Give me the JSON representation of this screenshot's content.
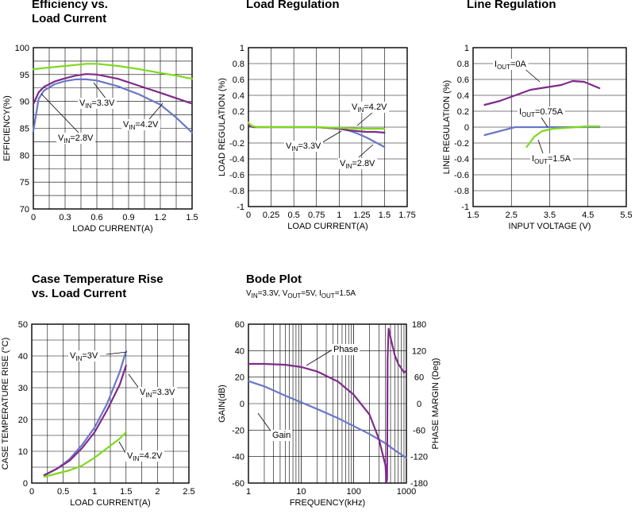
{
  "chart_data": [
    {
      "id": "eff",
      "type": "line",
      "title": [
        "Efficiency vs.",
        "Load Current"
      ],
      "xlabel": "LOAD CURRENT(A)",
      "ylabel": "EFFICIENCY(%)",
      "xlim": [
        0,
        1.5
      ],
      "ylim": [
        70,
        100
      ],
      "xticks": [
        0,
        0.3,
        0.6,
        0.9,
        1.2,
        1.5
      ],
      "xtick_labels": [
        "0",
        "0.3",
        "0.6",
        "0.9",
        "1.2",
        "1.5"
      ],
      "yticks": [
        70,
        75,
        80,
        85,
        90,
        95,
        100
      ],
      "ytick_labels": [
        "70",
        "75",
        "80",
        "85",
        "90",
        "95",
        "100"
      ],
      "grid": "minor-and-major",
      "series": [
        {
          "name": "V_IN=2.8V",
          "color": "#6a77c8",
          "x": [
            0,
            0.05,
            0.1,
            0.2,
            0.3,
            0.4,
            0.5,
            0.6,
            0.8,
            1.0,
            1.2,
            1.35,
            1.5
          ],
          "y": [
            84.5,
            90.5,
            92,
            93.2,
            93.8,
            94.1,
            94.1,
            93.9,
            92.8,
            91.3,
            89.4,
            87,
            84.2
          ]
        },
        {
          "name": "V_IN=3.3V",
          "color": "#7f2a8a",
          "x": [
            0,
            0.05,
            0.1,
            0.2,
            0.3,
            0.4,
            0.5,
            0.6,
            0.8,
            1.0,
            1.2,
            1.35,
            1.5
          ],
          "y": [
            89.5,
            91.7,
            92.7,
            93.7,
            94.3,
            94.8,
            95.1,
            95.0,
            94.2,
            92.9,
            91.6,
            90.6,
            89.6
          ]
        },
        {
          "name": "V_IN=4.2V",
          "color": "#7ed91b",
          "x": [
            0,
            0.05,
            0.1,
            0.2,
            0.3,
            0.4,
            0.5,
            0.6,
            0.8,
            1.0,
            1.2,
            1.35,
            1.5
          ],
          "y": [
            96.0,
            96.1,
            96.2,
            96.4,
            96.6,
            96.8,
            97.0,
            97.0,
            96.6,
            96.0,
            95.3,
            94.8,
            94.2
          ]
        }
      ],
      "annotations": [
        {
          "prefix": "V",
          "sub": "IN",
          "suffix": "=3.3V"
        },
        {
          "prefix": "V",
          "sub": "IN",
          "suffix": "=4.2V"
        },
        {
          "prefix": "V",
          "sub": "IN",
          "suffix": "=2.8V"
        }
      ]
    },
    {
      "id": "load",
      "type": "line",
      "title": [
        "Load Regulation"
      ],
      "xlabel": "LOAD CURRENT(A)",
      "ylabel": "LOAD REGULATION (%)",
      "xlim": [
        0,
        1.75
      ],
      "ylim": [
        -1,
        1
      ],
      "xticks": [
        0,
        0.25,
        0.5,
        0.75,
        1,
        1.25,
        1.5,
        1.75
      ],
      "xtick_labels": [
        "0",
        "0.25",
        "0.5",
        "0.75",
        "1",
        "1.25",
        "1.5",
        "1.75"
      ],
      "yticks": [
        -1,
        -0.8,
        -0.6,
        -0.4,
        -0.2,
        0,
        0.2,
        0.4,
        0.6,
        0.8,
        1
      ],
      "ytick_labels": [
        "-1",
        "-0.8",
        "-0.6",
        "-0.4",
        "-0.2",
        "0",
        "0.2",
        "0.4",
        "0.6",
        "0.8",
        "1"
      ],
      "grid": "major",
      "series": [
        {
          "name": "V_IN=2.8V",
          "color": "#6a77c8",
          "x": [
            0,
            0.02,
            0.05,
            0.1,
            0.3,
            0.5,
            0.75,
            1.0,
            1.1,
            1.2,
            1.3,
            1.4,
            1.5
          ],
          "y": [
            0.05,
            0.02,
            0.0,
            0.0,
            0.0,
            0.0,
            0.0,
            -0.02,
            -0.04,
            -0.08,
            -0.13,
            -0.19,
            -0.25
          ]
        },
        {
          "name": "V_IN=3.3V",
          "color": "#7f2a8a",
          "x": [
            0,
            0.02,
            0.05,
            0.1,
            0.3,
            0.5,
            0.75,
            1.0,
            1.1,
            1.2,
            1.3,
            1.4,
            1.5
          ],
          "y": [
            0.03,
            0.01,
            0.0,
            0.0,
            0.0,
            0.0,
            0.0,
            -0.02,
            -0.04,
            -0.05,
            -0.06,
            -0.06,
            -0.07
          ]
        },
        {
          "name": "V_IN=4.2V",
          "color": "#7ed91b",
          "x": [
            0,
            0.02,
            0.05,
            0.1,
            0.3,
            0.5,
            0.75,
            1.0,
            1.25,
            1.5
          ],
          "y": [
            0.06,
            0.03,
            0.01,
            0.0,
            0.0,
            0.0,
            0.0,
            -0.01,
            -0.02,
            -0.02
          ]
        }
      ],
      "annotations": [
        {
          "prefix": "V",
          "sub": "IN",
          "suffix": "=4.2V"
        },
        {
          "prefix": "V",
          "sub": "IN",
          "suffix": "=3.3V"
        },
        {
          "prefix": "V",
          "sub": "IN",
          "suffix": "=2.8V"
        }
      ]
    },
    {
      "id": "line",
      "type": "line",
      "title": [
        "Line Regulation"
      ],
      "xlabel": "INPUT VOLTAGE (V)",
      "ylabel": "LINE REGULATION (%)",
      "xlim": [
        1.5,
        5.5
      ],
      "ylim": [
        -1,
        1
      ],
      "xticks": [
        1.5,
        2.5,
        3.5,
        4.5,
        5.5
      ],
      "xtick_labels": [
        "1.5",
        "2.5",
        "3.5",
        "4.5",
        "5.5"
      ],
      "yticks": [
        -1,
        -0.8,
        -0.6,
        -0.4,
        -0.2,
        0,
        0.2,
        0.4,
        0.6,
        0.8,
        1
      ],
      "ytick_labels": [
        "-1",
        "-0.8",
        "-0.6",
        "-0.4",
        "-0.2",
        "0",
        "0.2",
        "0.4",
        "0.6",
        "0.8",
        "1"
      ],
      "grid": "major",
      "series": [
        {
          "name": "I_OUT=0A",
          "color": "#7f2a8a",
          "x": [
            1.8,
            2.2,
            2.6,
            3.0,
            3.4,
            3.8,
            4.1,
            4.4,
            4.6,
            4.8
          ],
          "y": [
            0.28,
            0.33,
            0.4,
            0.47,
            0.5,
            0.53,
            0.58,
            0.57,
            0.53,
            0.49
          ]
        },
        {
          "name": "I_OUT=0.75A",
          "color": "#6a77c8",
          "x": [
            1.8,
            2.2,
            2.6,
            3.0,
            3.5,
            4.0,
            4.4,
            4.8
          ],
          "y": [
            -0.1,
            -0.05,
            0.0,
            0.0,
            0.0,
            0.0,
            0.0,
            0.0
          ]
        },
        {
          "name": "I_OUT=1.5A",
          "color": "#7ed91b",
          "x": [
            2.9,
            3.1,
            3.3,
            3.6,
            3.9,
            4.2,
            4.5,
            4.8
          ],
          "y": [
            -0.25,
            -0.12,
            -0.05,
            -0.02,
            -0.01,
            0.0,
            0.01,
            0.01
          ]
        }
      ],
      "annotations": [
        {
          "prefix": "I",
          "sub": "OUT",
          "suffix": "=0A"
        },
        {
          "prefix": "I",
          "sub": "OUT",
          "suffix": "=0.75A"
        },
        {
          "prefix": "I",
          "sub": "OUT",
          "suffix": "=1.5A"
        }
      ]
    },
    {
      "id": "temp",
      "type": "line",
      "title": [
        "Case Temperature Rise",
        "vs. Load Current"
      ],
      "xlabel": "LOAD CURRENT(A)",
      "ylabel": "CASE TEMPERATURE RISE (°C)",
      "xlim": [
        0,
        2.5
      ],
      "ylim": [
        0,
        50
      ],
      "xticks": [
        0,
        0.5,
        1,
        1.5,
        2,
        2.5
      ],
      "xtick_labels": [
        "0",
        "0.5",
        "1",
        "1.5",
        "2",
        "2.5"
      ],
      "yticks": [
        0,
        10,
        20,
        30,
        40,
        50
      ],
      "ytick_labels": [
        "0",
        "10",
        "20",
        "30",
        "40",
        "50"
      ],
      "grid": "minor-and-major",
      "series": [
        {
          "name": "V_IN=3V",
          "color": "#6a77c8",
          "x": [
            0.2,
            0.4,
            0.6,
            0.8,
            1.0,
            1.2,
            1.4,
            1.5
          ],
          "y": [
            2.5,
            4.5,
            7.5,
            12,
            17.5,
            25,
            35,
            41.5
          ]
        },
        {
          "name": "V_IN=3.3V",
          "color": "#7f2a8a",
          "x": [
            0.2,
            0.4,
            0.6,
            0.8,
            1.0,
            1.2,
            1.4,
            1.5
          ],
          "y": [
            2.5,
            4.5,
            7,
            11,
            16,
            23,
            31,
            37
          ]
        },
        {
          "name": "V_IN=4.2V",
          "color": "#7ed91b",
          "x": [
            0.2,
            0.4,
            0.6,
            0.8,
            1.0,
            1.2,
            1.4,
            1.5
          ],
          "y": [
            2,
            3,
            4,
            5.5,
            8,
            11,
            14,
            16
          ]
        }
      ],
      "annotations": [
        {
          "prefix": "V",
          "sub": "IN",
          "suffix": "=3V"
        },
        {
          "prefix": "V",
          "sub": "IN",
          "suffix": "=3.3V"
        },
        {
          "prefix": "V",
          "sub": "IN",
          "suffix": "=4.2V"
        }
      ]
    },
    {
      "id": "bode",
      "type": "line",
      "title": [
        "Bode Plot"
      ],
      "subtitle": [
        {
          "prefix": "V",
          "sub": "IN",
          "suffix": "=3.3V, "
        },
        {
          "prefix": "V",
          "sub": "OUT",
          "suffix": "=5V, "
        },
        {
          "prefix": "I",
          "sub": "OUT",
          "suffix": "=1.5A"
        }
      ],
      "xlabel": "FREQUENCY(kHz)",
      "ylabel": "GAIN(dB)",
      "y2label": "PHASE MARGIN (Deg)",
      "xscale": "log",
      "xlim": [
        1,
        1000
      ],
      "ylim": [
        -60,
        60
      ],
      "y2lim": [
        -180,
        180
      ],
      "xticks": [
        1,
        10,
        100,
        1000
      ],
      "xtick_labels": [
        "1",
        "10",
        "100",
        "1000"
      ],
      "yticks": [
        -60,
        -40,
        -20,
        0,
        20,
        40,
        60
      ],
      "ytick_labels": [
        "-60",
        "-40",
        "-20",
        "0",
        "20",
        "40",
        "60"
      ],
      "y2ticks": [
        -180,
        -120,
        -60,
        0,
        60,
        120,
        180
      ],
      "y2tick_labels": [
        "-180",
        "-120",
        "-60",
        "0",
        "60",
        "120",
        "180"
      ],
      "grid": "log-vertical-and-horizontal",
      "series": [
        {
          "name": "Gain",
          "axis": "left",
          "color": "#6a77c8",
          "x": [
            1,
            2,
            5,
            10,
            20,
            50,
            100,
            200,
            400,
            700,
            1000
          ],
          "y": [
            17,
            13,
            6,
            1,
            -4,
            -11,
            -17,
            -23,
            -30,
            -37,
            -41
          ]
        },
        {
          "name": "Phase",
          "axis": "right",
          "color": "#7f2a8a",
          "x": [
            1,
            2,
            5,
            10,
            20,
            50,
            100,
            200,
            300,
            400,
            420,
            430,
            440,
            460,
            500,
            600,
            700,
            800,
            900,
            1000
          ],
          "y": [
            90,
            90,
            88,
            83,
            73,
            50,
            20,
            -25,
            -80,
            -140,
            -178,
            -170,
            100,
            170,
            150,
            110,
            90,
            80,
            70,
            75
          ]
        }
      ],
      "annotations": [
        {
          "prefix": "Phase",
          "sub": "",
          "suffix": ""
        },
        {
          "prefix": "Gain",
          "sub": "",
          "suffix": ""
        }
      ]
    }
  ]
}
